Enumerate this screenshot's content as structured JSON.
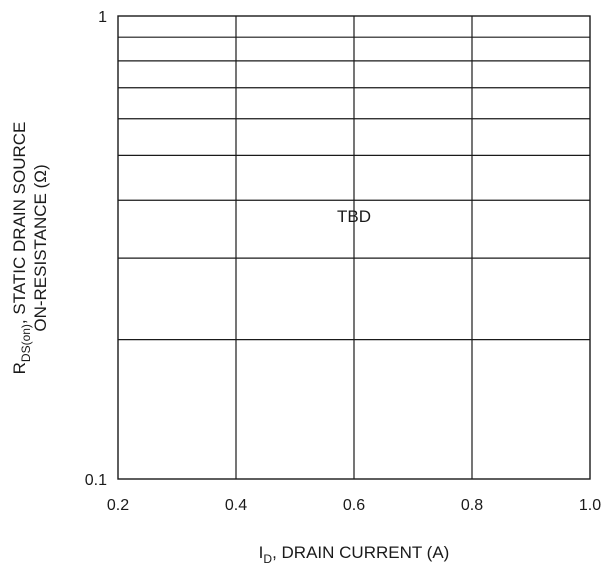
{
  "chart_data": {
    "type": "line",
    "title": "",
    "xlabel": {
      "symbol": "I",
      "subscript": "D",
      "text": ", DRAIN CURRENT (A)"
    },
    "ylabel": {
      "line1_symbol": "R",
      "line1_subscript": "DS(on)",
      "line1_text": ", STATIC DRAIN SOURCE",
      "line2": "ON-RESISTANCE (Ω)"
    },
    "x_scale": "linear",
    "y_scale": "log",
    "xlim": [
      0.2,
      1.0
    ],
    "ylim": [
      0.1,
      1
    ],
    "x_ticks": [
      {
        "value": 0.2,
        "label": "0.2"
      },
      {
        "value": 0.4,
        "label": "0.4"
      },
      {
        "value": 0.6,
        "label": "0.6"
      },
      {
        "value": 0.8,
        "label": "0.8"
      },
      {
        "value": 1.0,
        "label": "1.0"
      }
    ],
    "y_ticks": [
      {
        "value": 0.1,
        "label": "0.1"
      },
      {
        "value": 1,
        "label": "1"
      }
    ],
    "y_minor_gridlines": [
      0.2,
      0.3,
      0.4,
      0.5,
      0.6,
      0.7,
      0.8,
      0.9
    ],
    "grid": true,
    "series": [],
    "annotations": [
      {
        "text": "TBD",
        "x": 0.6,
        "y": 0.37
      }
    ]
  }
}
